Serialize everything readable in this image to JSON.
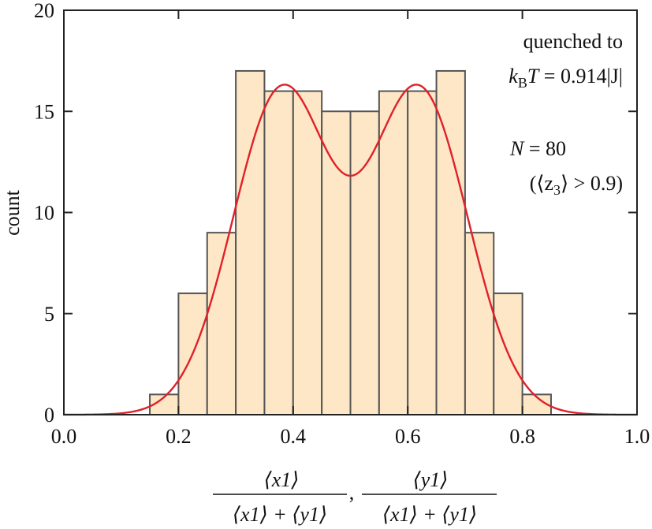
{
  "chart_data": {
    "type": "bar",
    "title": "",
    "xlabel": {
      "numerator_1": "⟨x1⟩",
      "denominator_1": "⟨x1⟩ + ⟨y1⟩",
      "separator": ",",
      "numerator_2": "⟨y1⟩",
      "denominator_2": "⟨x1⟩ + ⟨y1⟩"
    },
    "ylabel": "count",
    "xlim": [
      0.0,
      1.0
    ],
    "ylim": [
      0,
      20
    ],
    "x_ticks": [
      "0.0",
      "0.2",
      "0.4",
      "0.6",
      "0.8",
      "1.0"
    ],
    "x_tick_values": [
      0.0,
      0.2,
      0.4,
      0.6,
      0.8,
      1.0
    ],
    "y_ticks": [
      "0",
      "5",
      "10",
      "15",
      "20"
    ],
    "y_tick_values": [
      0,
      5,
      10,
      15,
      20
    ],
    "bin_edges": [
      0.15,
      0.2,
      0.25,
      0.3,
      0.35,
      0.4,
      0.45,
      0.5,
      0.55,
      0.6,
      0.65,
      0.7,
      0.75,
      0.8,
      0.85
    ],
    "values": [
      1,
      6,
      9,
      17,
      16,
      16,
      15,
      15,
      16,
      16,
      17,
      9,
      6,
      1
    ],
    "bar_fill": "#fde7c6",
    "bar_edge": "#555555",
    "fit_curve": {
      "color": "#e0202a",
      "components": [
        {
          "center": 0.38,
          "sigma": 0.085,
          "amplitude": 16.0
        },
        {
          "center": 0.62,
          "sigma": 0.085,
          "amplitude": 16.0
        }
      ]
    },
    "annotations": {
      "line1": "quenched to",
      "line2_k": "k",
      "line2_sub": "B",
      "line2_T": "T",
      "line2_rest": " = 0.914|J|",
      "line3_N": "N",
      "line3_rest": " = 80",
      "line4_open": "(⟨z",
      "line4_sub": "3",
      "line4_rest": "⟩ > 0.9)"
    },
    "grid": false
  }
}
